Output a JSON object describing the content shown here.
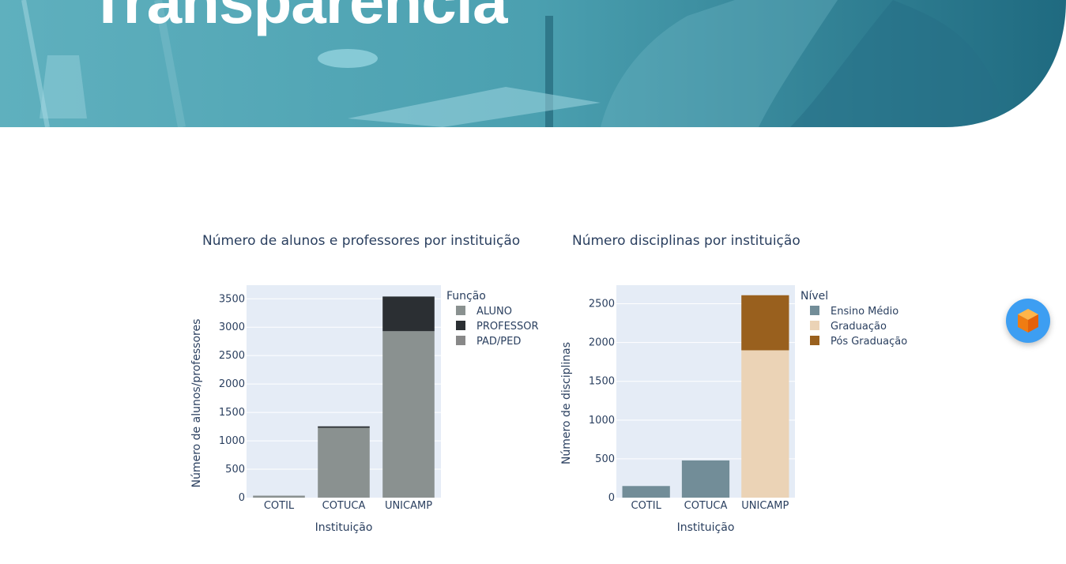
{
  "hero": {
    "title": "Transparência"
  },
  "chart_data": [
    {
      "type": "bar",
      "stacked": true,
      "title": "Número de alunos e professores por instituição",
      "xlabel": "Instituição",
      "ylabel": "Número de alunos/professores",
      "categories": [
        "COTIL",
        "COTUCA",
        "UNICAMP"
      ],
      "ylim": [
        0,
        3740
      ],
      "yticks": [
        0,
        500,
        1000,
        1500,
        2000,
        2500,
        3000,
        3500
      ],
      "legend_title": "Função",
      "legend_position": "right",
      "grid": true,
      "series": [
        {
          "name": "ALUNO",
          "values": [
            35,
            1230,
            2930
          ],
          "color": "#8a9190"
        },
        {
          "name": "PROFESSOR",
          "values": [
            0,
            25,
            610
          ],
          "color": "#2b2f33"
        },
        {
          "name": "PAD/PED",
          "values": [
            0,
            0,
            0
          ],
          "color": "#888888"
        }
      ]
    },
    {
      "type": "bar",
      "stacked": true,
      "title": "Número disciplinas por instituição",
      "xlabel": "Instituição",
      "ylabel": "Número de disciplinas",
      "categories": [
        "COTIL",
        "COTUCA",
        "UNICAMP"
      ],
      "ylim": [
        0,
        2740
      ],
      "yticks": [
        0,
        500,
        1000,
        1500,
        2000,
        2500
      ],
      "legend_title": "Nível",
      "legend_position": "right",
      "grid": true,
      "series": [
        {
          "name": "Ensino Médio",
          "values": [
            150,
            480,
            0
          ],
          "color": "#728d98"
        },
        {
          "name": "Graduação",
          "values": [
            0,
            0,
            1900
          ],
          "color": "#ebd3b6"
        },
        {
          "name": "Pós Graduação",
          "values": [
            0,
            0,
            710
          ],
          "color": "#99601e"
        }
      ]
    }
  ],
  "fab": {
    "icon": "cube-icon",
    "color": "#3d9ef2"
  }
}
